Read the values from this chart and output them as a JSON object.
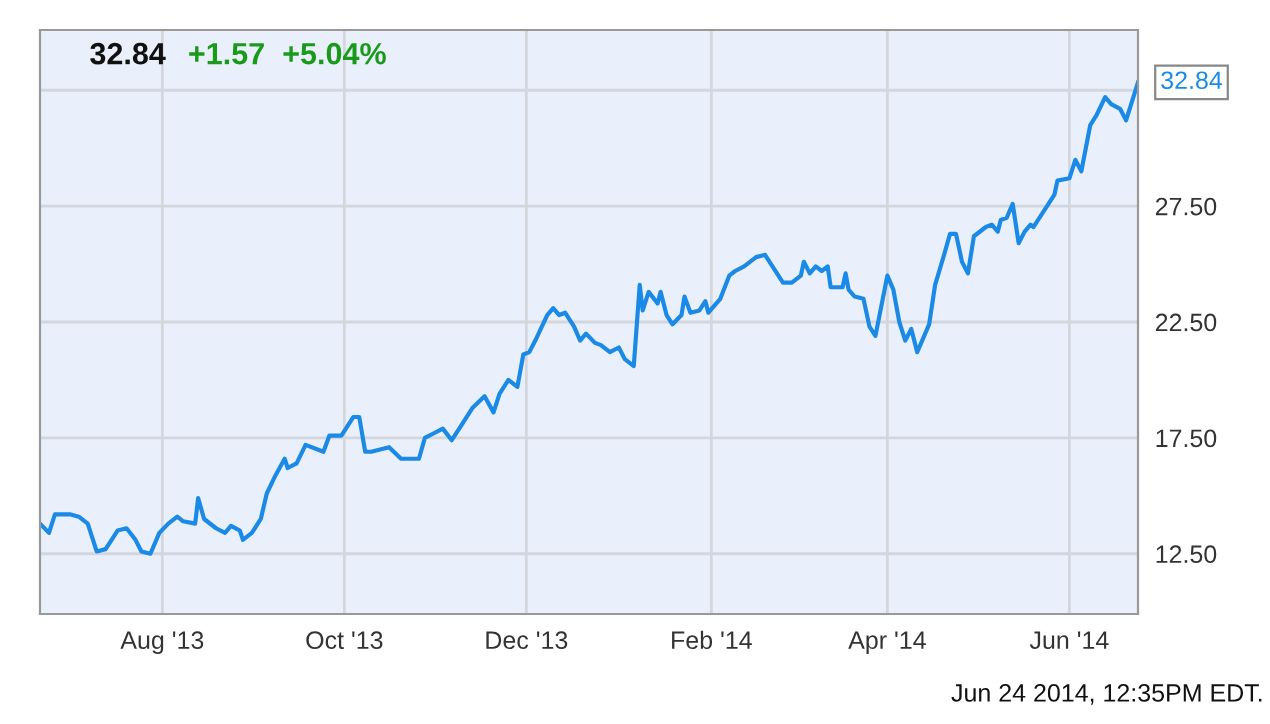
{
  "chart_data": {
    "type": "line",
    "title": "32.84",
    "subtitle": "+1.57  +5.04%",
    "annotations": [
      {
        "text": "32.84",
        "x": "2014-06-24",
        "y": 32.84
      },
      "Jun 24 2014, 12:35PM EDT."
    ],
    "x": [
      "2013-06-21",
      "2013-06-24",
      "2013-06-26",
      "2013-07-01",
      "2013-07-04",
      "2013-07-07",
      "2013-07-10",
      "2013-07-13",
      "2013-07-17",
      "2013-07-20",
      "2013-07-23",
      "2013-07-25",
      "2013-07-28",
      "2013-07-31",
      "2013-08-03",
      "2013-08-06",
      "2013-08-08",
      "2013-08-12",
      "2013-08-13",
      "2013-08-15",
      "2013-08-19",
      "2013-08-22",
      "2013-08-24",
      "2013-08-27",
      "2013-08-28",
      "2013-08-31",
      "2013-09-03",
      "2013-09-05",
      "2013-09-08",
      "2013-09-11",
      "2013-09-12",
      "2013-09-15",
      "2013-09-18",
      "2013-09-24",
      "2013-09-26",
      "2013-09-30",
      "2013-10-04",
      "2013-10-06",
      "2013-10-08",
      "2013-10-10",
      "2013-10-16",
      "2013-10-20",
      "2013-10-23",
      "2013-10-26",
      "2013-10-28",
      "2013-10-31",
      "2013-11-03",
      "2013-11-06",
      "2013-11-09",
      "2013-11-13",
      "2013-11-17",
      "2013-11-20",
      "2013-11-22",
      "2013-11-25",
      "2013-11-28",
      "2013-11-30",
      "2013-12-02",
      "2013-12-04",
      "2013-12-08",
      "2013-12-10",
      "2013-12-12",
      "2013-12-14",
      "2013-12-17",
      "2013-12-19",
      "2013-12-21",
      "2013-12-24",
      "2013-12-26",
      "2013-12-29",
      "2014-01-01",
      "2014-01-03",
      "2014-01-06",
      "2014-01-08",
      "2014-01-09",
      "2014-01-11",
      "2014-01-14",
      "2014-01-15",
      "2014-01-17",
      "2014-01-19",
      "2014-01-22",
      "2014-01-23",
      "2014-01-25",
      "2014-01-28",
      "2014-01-30",
      "2014-01-31",
      "2014-02-04",
      "2014-02-07",
      "2014-02-09",
      "2014-02-12",
      "2014-02-16",
      "2014-02-19",
      "2014-02-21",
      "2014-02-23",
      "2014-02-25",
      "2014-02-28",
      "2014-03-03",
      "2014-03-04",
      "2014-03-06",
      "2014-03-08",
      "2014-03-10",
      "2014-03-12",
      "2014-03-13",
      "2014-03-17",
      "2014-03-18",
      "2014-03-19",
      "2014-03-21",
      "2014-03-24",
      "2014-03-26",
      "2014-03-28",
      "2014-04-01",
      "2014-04-03",
      "2014-04-05",
      "2014-04-07",
      "2014-04-09",
      "2014-04-11",
      "2014-04-15",
      "2014-04-17",
      "2014-04-20",
      "2014-04-22",
      "2014-04-24",
      "2014-04-26",
      "2014-04-28",
      "2014-04-30",
      "2014-05-04",
      "2014-05-06",
      "2014-05-08",
      "2014-05-09",
      "2014-05-11",
      "2014-05-13",
      "2014-05-15",
      "2014-05-17",
      "2014-05-19",
      "2014-05-20",
      "2014-05-27",
      "2014-05-28",
      "2014-06-01",
      "2014-06-03",
      "2014-06-05",
      "2014-06-08",
      "2014-06-10",
      "2014-06-13",
      "2014-06-15",
      "2014-06-18",
      "2014-06-20",
      "2014-06-24"
    ],
    "series": [
      {
        "color": "#1a8ae6",
        "values": [
          13.8,
          13.4,
          14.2,
          14.2,
          14.1,
          13.8,
          12.6,
          12.7,
          13.5,
          13.6,
          13.1,
          12.6,
          12.5,
          13.4,
          13.8,
          14.1,
          13.9,
          13.8,
          14.9,
          14.0,
          13.6,
          13.4,
          13.7,
          13.5,
          13.1,
          13.4,
          14.0,
          15.1,
          15.9,
          16.6,
          16.2,
          16.4,
          17.2,
          16.9,
          17.6,
          17.6,
          18.4,
          18.4,
          16.9,
          16.9,
          17.1,
          16.6,
          16.6,
          16.6,
          17.5,
          17.7,
          17.9,
          17.4,
          18.0,
          18.8,
          19.3,
          18.6,
          19.4,
          20.0,
          19.7,
          21.1,
          21.2,
          21.7,
          22.8,
          23.1,
          22.8,
          22.9,
          22.3,
          21.7,
          22.0,
          21.6,
          21.5,
          21.2,
          21.4,
          20.9,
          20.6,
          24.1,
          23.0,
          23.8,
          23.3,
          23.8,
          22.8,
          22.4,
          22.8,
          23.6,
          22.9,
          23.0,
          23.4,
          22.9,
          23.5,
          24.5,
          24.7,
          24.9,
          25.3,
          25.4,
          25.0,
          24.6,
          24.2,
          24.2,
          24.5,
          25.1,
          24.6,
          24.9,
          24.7,
          24.9,
          24.0,
          24.0,
          24.6,
          23.9,
          23.6,
          23.5,
          22.3,
          21.9,
          24.5,
          23.9,
          22.5,
          21.7,
          22.2,
          21.2,
          22.4,
          24.1,
          25.4,
          26.3,
          26.3,
          25.1,
          24.6,
          26.2,
          26.6,
          26.7,
          26.4,
          26.9,
          27.0,
          27.6,
          25.9,
          26.4,
          26.7,
          26.6,
          28.0,
          28.6,
          28.7,
          29.5,
          29.0,
          31.0,
          31.4,
          32.2,
          31.9,
          31.7,
          31.2,
          32.84
        ]
      }
    ],
    "xlim": [
      "2013-06-21",
      "2014-06-24"
    ],
    "xticks": [
      {
        "value": "2013-08-01",
        "label": "Aug '13"
      },
      {
        "value": "2013-10-01",
        "label": "Oct '13"
      },
      {
        "value": "2013-12-01",
        "label": "Dec '13"
      },
      {
        "value": "2014-02-01",
        "label": "Feb '14"
      },
      {
        "value": "2014-04-01",
        "label": "Apr '14"
      },
      {
        "value": "2014-06-01",
        "label": "Jun '14"
      }
    ],
    "ylim": [
      9.9,
      35.1
    ],
    "yticks": [
      {
        "value": 12.5,
        "label": "12.50"
      },
      {
        "value": 17.5,
        "label": "17.50"
      },
      {
        "value": 22.5,
        "label": "22.50"
      },
      {
        "value": 27.5,
        "label": "27.50"
      },
      {
        "value": 32.5,
        "label": null
      }
    ],
    "grid": true,
    "legend": false,
    "marker": "none",
    "line_style": "solid"
  }
}
